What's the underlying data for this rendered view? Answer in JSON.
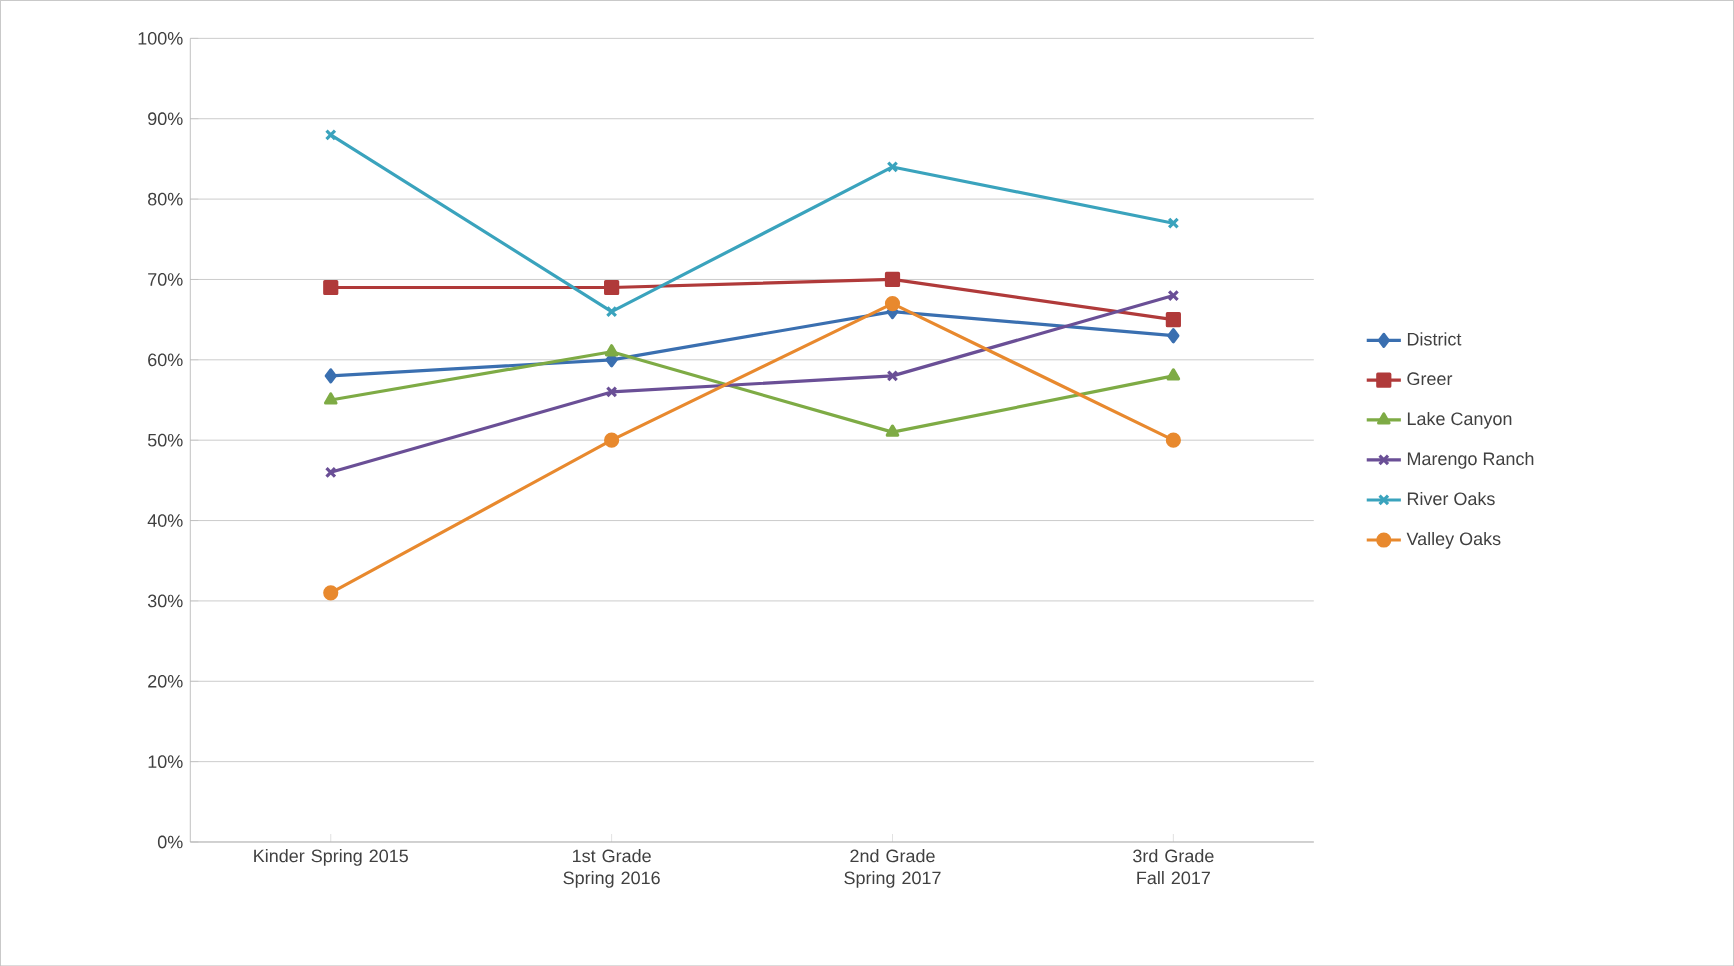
{
  "chart_data": {
    "type": "line",
    "categories": [
      "Kinder Spring 2015",
      "1st Grade Spring 2016",
      "2nd Grade Spring 2017",
      "3rd Grade Fall 2017"
    ],
    "ylim": [
      0,
      100
    ],
    "yticks": [
      {
        "value": 0,
        "label": "0%"
      },
      {
        "value": 10,
        "label": "10%"
      },
      {
        "value": 20,
        "label": "20%"
      },
      {
        "value": 30,
        "label": "30%"
      },
      {
        "value": 40,
        "label": "40%"
      },
      {
        "value": 50,
        "label": "50%"
      },
      {
        "value": 60,
        "label": "60%"
      },
      {
        "value": 70,
        "label": "70%"
      },
      {
        "value": 80,
        "label": "80%"
      },
      {
        "value": 90,
        "label": "90%"
      },
      {
        "value": 100,
        "label": "100%"
      }
    ],
    "grid": "y",
    "legend": "right",
    "series": [
      {
        "name": "District",
        "color": "#3a6fb0",
        "marker": "diamond",
        "values": [
          58,
          60,
          66,
          63
        ]
      },
      {
        "name": "Greer",
        "color": "#b03a3a",
        "marker": "square",
        "values": [
          69,
          69,
          70,
          65
        ]
      },
      {
        "name": "Lake Canyon",
        "color": "#7eab45",
        "marker": "triangle",
        "values": [
          55,
          61,
          51,
          58
        ]
      },
      {
        "name": "Marengo Ranch",
        "color": "#6a4f96",
        "marker": "cross",
        "values": [
          46,
          56,
          58,
          68
        ]
      },
      {
        "name": "River Oaks",
        "color": "#3aa3bd",
        "marker": "cross",
        "values": [
          88,
          66,
          84,
          77
        ]
      },
      {
        "name": "Valley Oaks",
        "color": "#e8892e",
        "marker": "circle",
        "values": [
          31,
          50,
          67,
          50
        ]
      }
    ]
  }
}
